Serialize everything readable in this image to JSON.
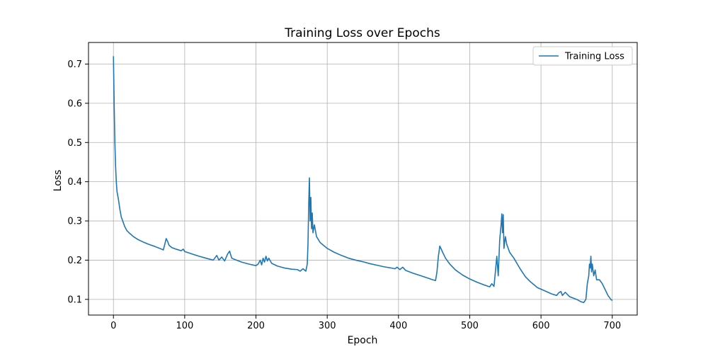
{
  "chart_data": {
    "type": "line",
    "title": "Training Loss over Epochs",
    "xlabel": "Epoch",
    "ylabel": "Loss",
    "xlim": [
      -35,
      735
    ],
    "ylim": [
      0.06,
      0.755
    ],
    "xticks": [
      0,
      100,
      200,
      300,
      400,
      500,
      600,
      700
    ],
    "yticks": [
      0.1,
      0.2,
      0.3,
      0.4,
      0.5,
      0.6,
      0.7
    ],
    "grid": true,
    "legend": {
      "placement": "top-right",
      "entries": [
        "Training Loss"
      ]
    },
    "series": [
      {
        "name": "Training Loss",
        "color": "#1f77b4",
        "points": [
          [
            0,
            0.72
          ],
          [
            1,
            0.6
          ],
          [
            2,
            0.5
          ],
          [
            3,
            0.44
          ],
          [
            4,
            0.4
          ],
          [
            5,
            0.375
          ],
          [
            7,
            0.355
          ],
          [
            9,
            0.33
          ],
          [
            11,
            0.31
          ],
          [
            13,
            0.3
          ],
          [
            16,
            0.285
          ],
          [
            19,
            0.275
          ],
          [
            23,
            0.268
          ],
          [
            28,
            0.26
          ],
          [
            35,
            0.252
          ],
          [
            42,
            0.246
          ],
          [
            50,
            0.24
          ],
          [
            58,
            0.235
          ],
          [
            65,
            0.23
          ],
          [
            70,
            0.226
          ],
          [
            72,
            0.24
          ],
          [
            74,
            0.255
          ],
          [
            76,
            0.248
          ],
          [
            78,
            0.238
          ],
          [
            82,
            0.232
          ],
          [
            88,
            0.228
          ],
          [
            95,
            0.224
          ],
          [
            98,
            0.228
          ],
          [
            100,
            0.222
          ],
          [
            110,
            0.216
          ],
          [
            120,
            0.21
          ],
          [
            130,
            0.205
          ],
          [
            140,
            0.2
          ],
          [
            145,
            0.212
          ],
          [
            148,
            0.2
          ],
          [
            152,
            0.208
          ],
          [
            156,
            0.198
          ],
          [
            160,
            0.215
          ],
          [
            163,
            0.223
          ],
          [
            166,
            0.205
          ],
          [
            170,
            0.202
          ],
          [
            180,
            0.195
          ],
          [
            190,
            0.19
          ],
          [
            200,
            0.186
          ],
          [
            203,
            0.19
          ],
          [
            206,
            0.2
          ],
          [
            208,
            0.188
          ],
          [
            210,
            0.205
          ],
          [
            212,
            0.195
          ],
          [
            214,
            0.21
          ],
          [
            216,
            0.198
          ],
          [
            218,
            0.205
          ],
          [
            222,
            0.192
          ],
          [
            230,
            0.185
          ],
          [
            240,
            0.18
          ],
          [
            250,
            0.177
          ],
          [
            258,
            0.176
          ],
          [
            262,
            0.172
          ],
          [
            266,
            0.178
          ],
          [
            270,
            0.172
          ],
          [
            272,
            0.19
          ],
          [
            273,
            0.24
          ],
          [
            274,
            0.34
          ],
          [
            275,
            0.41
          ],
          [
            276,
            0.3
          ],
          [
            277,
            0.36
          ],
          [
            278,
            0.28
          ],
          [
            279,
            0.32
          ],
          [
            280,
            0.27
          ],
          [
            282,
            0.29
          ],
          [
            285,
            0.26
          ],
          [
            290,
            0.245
          ],
          [
            300,
            0.23
          ],
          [
            310,
            0.22
          ],
          [
            320,
            0.212
          ],
          [
            330,
            0.205
          ],
          [
            340,
            0.2
          ],
          [
            350,
            0.196
          ],
          [
            360,
            0.191
          ],
          [
            370,
            0.187
          ],
          [
            380,
            0.183
          ],
          [
            390,
            0.18
          ],
          [
            395,
            0.178
          ],
          [
            398,
            0.182
          ],
          [
            402,
            0.176
          ],
          [
            406,
            0.182
          ],
          [
            410,
            0.174
          ],
          [
            420,
            0.167
          ],
          [
            430,
            0.161
          ],
          [
            440,
            0.155
          ],
          [
            448,
            0.15
          ],
          [
            452,
            0.148
          ],
          [
            454,
            0.17
          ],
          [
            456,
            0.21
          ],
          [
            458,
            0.236
          ],
          [
            462,
            0.22
          ],
          [
            466,
            0.205
          ],
          [
            472,
            0.19
          ],
          [
            480,
            0.175
          ],
          [
            490,
            0.162
          ],
          [
            500,
            0.152
          ],
          [
            510,
            0.144
          ],
          [
            520,
            0.137
          ],
          [
            528,
            0.132
          ],
          [
            531,
            0.14
          ],
          [
            534,
            0.133
          ],
          [
            536,
            0.17
          ],
          [
            538,
            0.21
          ],
          [
            540,
            0.16
          ],
          [
            542,
            0.25
          ],
          [
            544,
            0.29
          ],
          [
            545,
            0.318
          ],
          [
            546,
            0.27
          ],
          [
            547,
            0.316
          ],
          [
            548,
            0.23
          ],
          [
            550,
            0.26
          ],
          [
            552,
            0.24
          ],
          [
            556,
            0.22
          ],
          [
            562,
            0.205
          ],
          [
            570,
            0.18
          ],
          [
            578,
            0.158
          ],
          [
            585,
            0.145
          ],
          [
            595,
            0.13
          ],
          [
            605,
            0.122
          ],
          [
            615,
            0.114
          ],
          [
            622,
            0.11
          ],
          [
            625,
            0.117
          ],
          [
            628,
            0.12
          ],
          [
            630,
            0.11
          ],
          [
            634,
            0.118
          ],
          [
            640,
            0.107
          ],
          [
            650,
            0.1
          ],
          [
            656,
            0.094
          ],
          [
            660,
            0.092
          ],
          [
            663,
            0.1
          ],
          [
            665,
            0.14
          ],
          [
            667,
            0.16
          ],
          [
            668,
            0.19
          ],
          [
            669,
            0.18
          ],
          [
            670,
            0.21
          ],
          [
            671,
            0.17
          ],
          [
            672,
            0.19
          ],
          [
            674,
            0.16
          ],
          [
            676,
            0.175
          ],
          [
            678,
            0.15
          ],
          [
            682,
            0.15
          ],
          [
            686,
            0.14
          ],
          [
            690,
            0.125
          ],
          [
            694,
            0.11
          ],
          [
            698,
            0.1
          ],
          [
            700,
            0.097
          ]
        ]
      }
    ]
  }
}
